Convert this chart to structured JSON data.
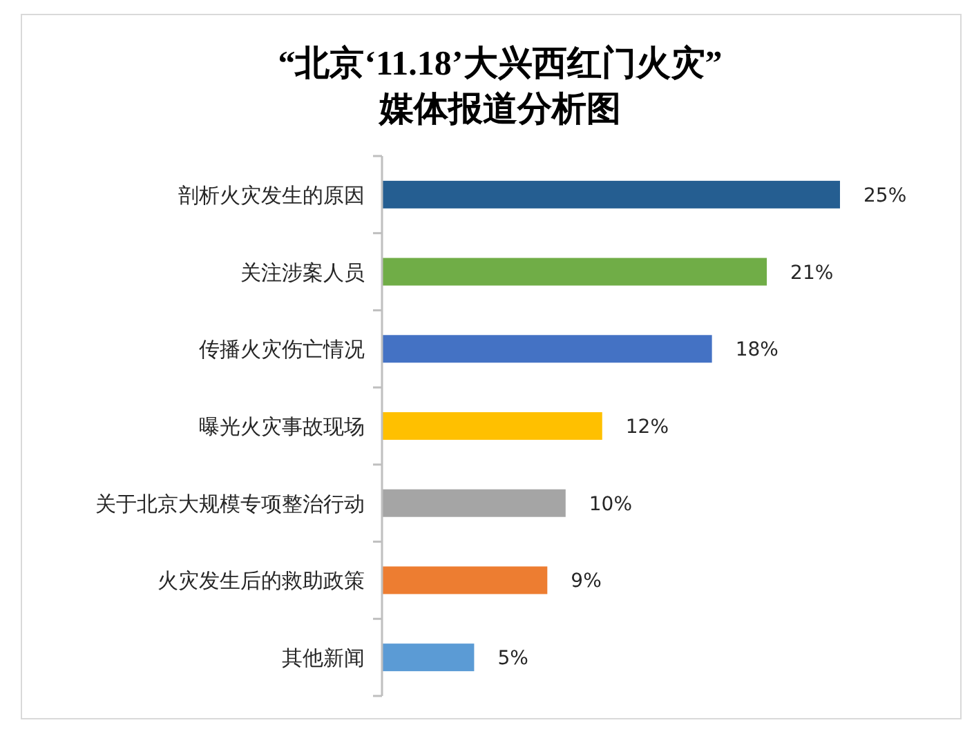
{
  "chart_data": {
    "type": "bar",
    "orientation": "horizontal",
    "title": "“北京‘11.18’大兴西红门火灾”\n媒体报道分析图",
    "categories": [
      "剖析火灾发生的原因",
      "关注涉案人员",
      "传播火灾伤亡情况",
      "曝光火灾事故现场",
      "关于北京大规模专项整治行动",
      "火灾发生后的救助政策",
      "其他新闻"
    ],
    "values": [
      25,
      21,
      18,
      12,
      10,
      9,
      5
    ],
    "value_labels": [
      "25%",
      "21%",
      "18%",
      "12%",
      "10%",
      "9%",
      "5%"
    ],
    "colors": [
      "#255e91",
      "#70ad47",
      "#4472c4",
      "#ffc000",
      "#a5a5a5",
      "#ed7d31",
      "#5b9bd5"
    ]
  }
}
